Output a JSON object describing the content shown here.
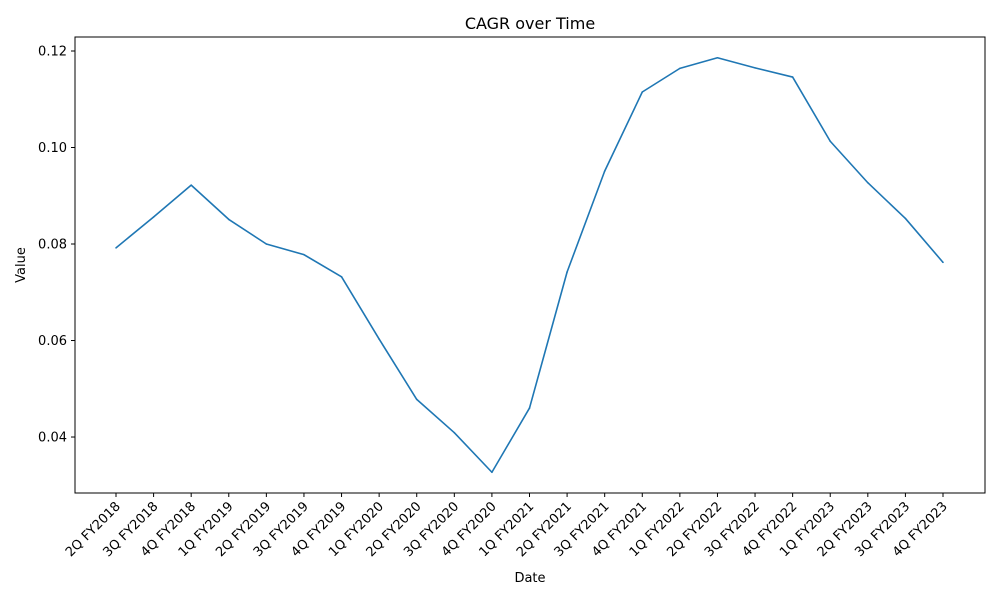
{
  "chart_data": {
    "type": "line",
    "title": "CAGR over Time",
    "xlabel": "Date",
    "ylabel": "Value",
    "categories": [
      "2Q FY2018",
      "3Q FY2018",
      "4Q FY2018",
      "1Q FY2019",
      "2Q FY2019",
      "3Q FY2019",
      "4Q FY2019",
      "1Q FY2020",
      "2Q FY2020",
      "3Q FY2020",
      "4Q FY2020",
      "1Q FY2021",
      "2Q FY2021",
      "3Q FY2021",
      "4Q FY2021",
      "1Q FY2022",
      "2Q FY2022",
      "3Q FY2022",
      "4Q FY2022",
      "1Q FY2023",
      "2Q FY2023",
      "3Q FY2023",
      "4Q FY2023"
    ],
    "series": [
      {
        "values": [
          0.0792,
          0.0856,
          0.0922,
          0.0851,
          0.08,
          0.0778,
          0.0732,
          0.0603,
          0.0478,
          0.0409,
          0.0327,
          0.046,
          0.0742,
          0.0951,
          0.1115,
          0.1164,
          0.1186,
          0.1165,
          0.1146,
          0.1013,
          0.0927,
          0.0853,
          0.0762
        ],
        "color": "#1f77b4"
      }
    ],
    "yticks": [
      "0.04",
      "0.06",
      "0.08",
      "0.10",
      "0.12"
    ],
    "ytick_values": [
      0.04,
      0.06,
      0.08,
      0.1,
      0.12
    ],
    "ylim": [
      0.0284,
      0.1229
    ],
    "grid": false,
    "legend": "none"
  }
}
